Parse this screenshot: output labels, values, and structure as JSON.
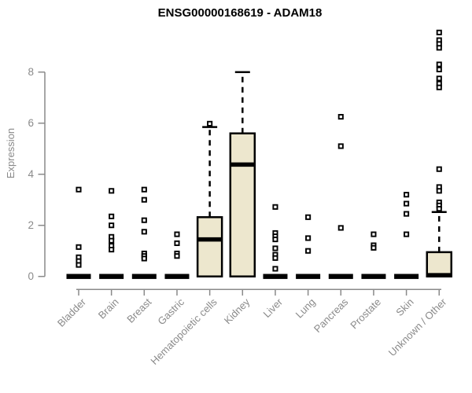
{
  "chart_data": {
    "type": "boxplot",
    "title": "ENSG00000168619 - ADAM18",
    "ylabel": "Expression",
    "xlabel": "",
    "ylim": [
      0,
      9.6
    ],
    "yticks": [
      0,
      2,
      4,
      6,
      8
    ],
    "grid": false,
    "legend": "none",
    "categories": [
      "Bladder",
      "Brain",
      "Breast",
      "Gastric",
      "Hematopoietic cells",
      "Kidney",
      "Liver",
      "Lung",
      "Pancreas",
      "Prostate",
      "Skin",
      "Unknown / Other"
    ],
    "boxes": [
      {
        "category": "Bladder",
        "q1": 0,
        "median": 0,
        "q3": 0,
        "whisker_low": 0,
        "whisker_high": 0,
        "outliers": [
          3.4,
          1.15,
          0.75,
          0.6,
          0.45
        ]
      },
      {
        "category": "Brain",
        "q1": 0,
        "median": 0,
        "q3": 0,
        "whisker_low": 0,
        "whisker_high": 0,
        "outliers": [
          3.35,
          2.35,
          2.0,
          1.55,
          1.4,
          1.2,
          1.05
        ]
      },
      {
        "category": "Breast",
        "q1": 0,
        "median": 0,
        "q3": 0,
        "whisker_low": 0,
        "whisker_high": 0,
        "outliers": [
          3.4,
          3.0,
          2.2,
          1.75,
          0.9,
          0.8,
          0.7
        ]
      },
      {
        "category": "Gastric",
        "q1": 0,
        "median": 0,
        "q3": 0,
        "whisker_low": 0,
        "whisker_high": 0,
        "outliers": [
          1.65,
          1.3,
          0.9,
          0.8
        ]
      },
      {
        "category": "Hematopoietic cells",
        "q1": 0,
        "median": 1.45,
        "q3": 2.32,
        "whisker_low": 0,
        "whisker_high": 5.85,
        "outliers": [
          5.98
        ]
      },
      {
        "category": "Kidney",
        "q1": 0,
        "median": 4.38,
        "q3": 5.6,
        "whisker_low": 0,
        "whisker_high": 8.0,
        "outliers": []
      },
      {
        "category": "Liver",
        "q1": 0,
        "median": 0,
        "q3": 0,
        "whisker_low": 0,
        "whisker_high": 0,
        "outliers": [
          2.72,
          1.7,
          1.57,
          1.45,
          1.1,
          0.85,
          0.72,
          0.3
        ]
      },
      {
        "category": "Lung",
        "q1": 0,
        "median": 0,
        "q3": 0,
        "whisker_low": 0,
        "whisker_high": 0,
        "outliers": [
          2.32,
          1.5,
          1.0
        ]
      },
      {
        "category": "Pancreas",
        "q1": 0,
        "median": 0,
        "q3": 0,
        "whisker_low": 0,
        "whisker_high": 0,
        "outliers": [
          6.25,
          5.1,
          1.9
        ]
      },
      {
        "category": "Prostate",
        "q1": 0,
        "median": 0,
        "q3": 0,
        "whisker_low": 0,
        "whisker_high": 0,
        "outliers": [
          1.65,
          1.22,
          1.12
        ]
      },
      {
        "category": "Skin",
        "q1": 0,
        "median": 0,
        "q3": 0,
        "whisker_low": 0,
        "whisker_high": 0,
        "outliers": [
          3.2,
          2.85,
          2.45,
          1.65
        ]
      },
      {
        "category": "Unknown / Other",
        "q1": 0,
        "median": 0.05,
        "q3": 0.95,
        "whisker_low": 0,
        "whisker_high": 2.52,
        "outliers": [
          9.55,
          9.25,
          9.1,
          8.95,
          8.3,
          8.1,
          7.75,
          7.55,
          7.4,
          4.2,
          3.5,
          3.35,
          2.9,
          2.78,
          2.65
        ]
      }
    ],
    "colors": {
      "box_fill": "#EDE7CE",
      "box_stroke": "#000000",
      "median": "#000000",
      "whisker": "#000000",
      "outlier_stroke": "#000000",
      "outlier_fill": "#ffffff",
      "axis": "#8a8a8a",
      "tick_label": "#8a8a8a",
      "title": "#000000",
      "background": "#ffffff"
    }
  }
}
